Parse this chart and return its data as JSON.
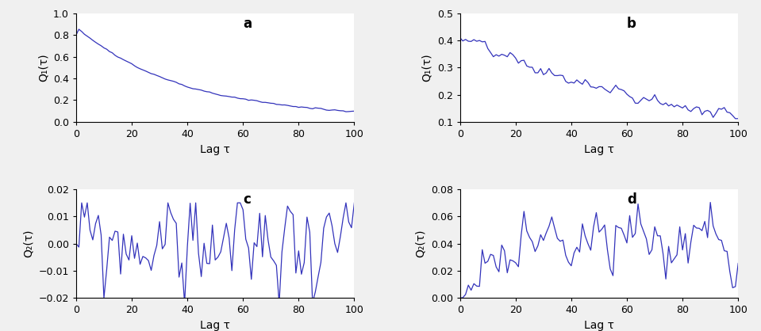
{
  "line_color": "#3333bb",
  "background_color": "#f0f0f0",
  "axes_background": "#ffffff",
  "label_a": "a",
  "label_b": "b",
  "label_c": "c",
  "label_d": "d",
  "ylabel_a": "Q₁(τ)",
  "ylabel_b": "Q₁(τ)",
  "ylabel_c": "Q₂(τ)",
  "ylabel_d": "Q₂(τ)",
  "xlabel": "Lag τ",
  "xlim": [
    0,
    100
  ],
  "ylim_a": [
    0,
    1
  ],
  "ylim_b": [
    0.1,
    0.5
  ],
  "ylim_c": [
    -0.02,
    0.02
  ],
  "ylim_d": [
    0,
    0.08
  ],
  "xticks": [
    0,
    20,
    40,
    60,
    80,
    100
  ],
  "yticks_a": [
    0,
    0.2,
    0.4,
    0.6,
    0.8,
    1.0
  ],
  "yticks_b": [
    0.1,
    0.2,
    0.3,
    0.4,
    0.5
  ],
  "yticks_c": [
    -0.02,
    -0.01,
    0,
    0.01,
    0.02
  ],
  "yticks_d": [
    0,
    0.02,
    0.04,
    0.06,
    0.08
  ],
  "fontsize_label": 10,
  "fontsize_panellabel": 12,
  "fontsize_tick": 9
}
